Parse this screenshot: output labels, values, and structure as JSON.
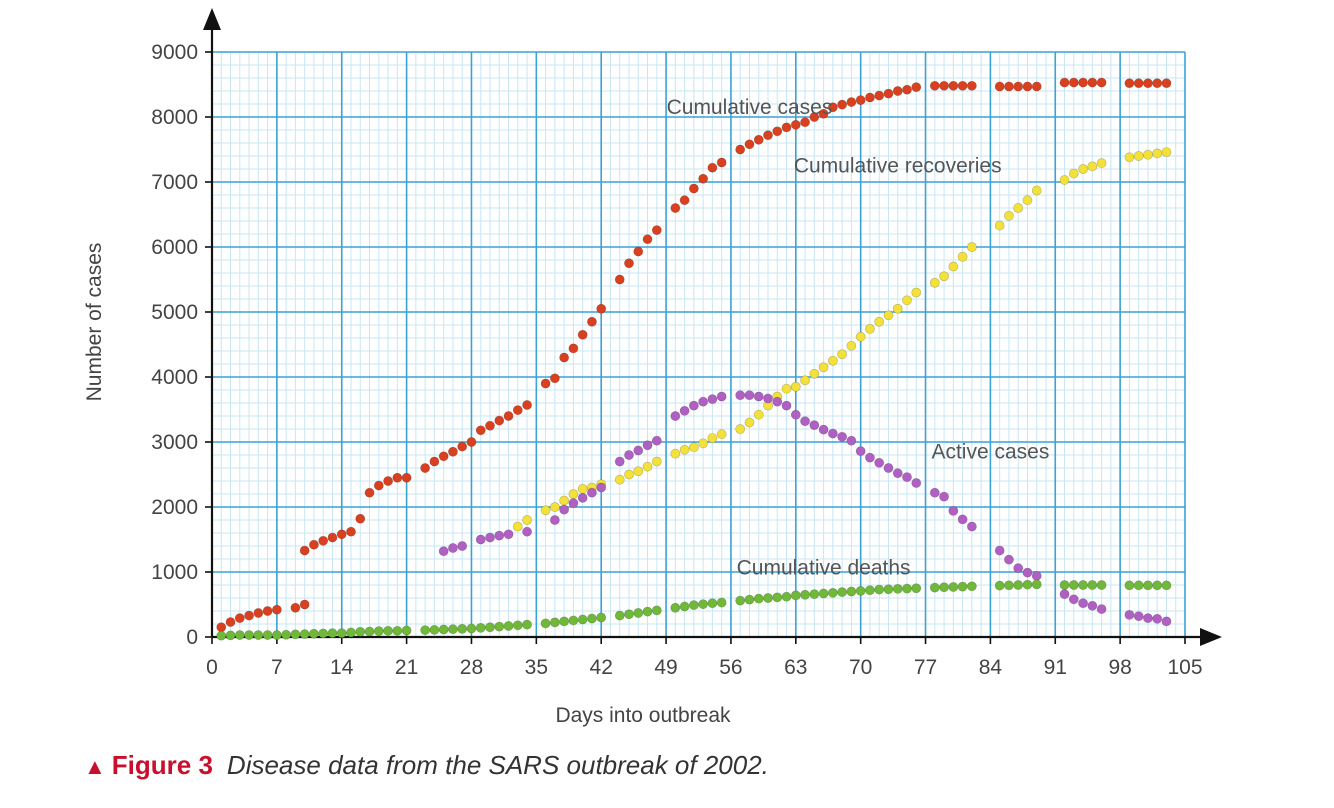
{
  "caption": {
    "figure_label": "Figure 3",
    "description": "Disease data from the SARS outbreak of 2002."
  },
  "colors": {
    "minor_grid": "#c9e6f5",
    "major_grid": "#3aa2d6",
    "axis": "#111111",
    "cases": "#d9401f",
    "recoveries": "#f3e13a",
    "active": "#b05fc2",
    "deaths": "#6fb83a",
    "caption_red": "#c8102e"
  },
  "chart_data": {
    "type": "scatter",
    "title": "",
    "xlabel": "Days into outbreak",
    "ylabel": "Number of cases",
    "xlim": [
      0,
      105
    ],
    "ylim": [
      0,
      9000
    ],
    "x_ticks": [
      0,
      7,
      14,
      21,
      28,
      35,
      42,
      49,
      56,
      63,
      70,
      77,
      84,
      91,
      98,
      105
    ],
    "y_ticks": [
      0,
      1000,
      2000,
      3000,
      4000,
      5000,
      6000,
      7000,
      8000,
      9000
    ],
    "grid": true,
    "series": [
      {
        "name": "Cumulative cases",
        "color": "#d9401f",
        "x": [
          1,
          2,
          3,
          4,
          5,
          6,
          7,
          9,
          10,
          10,
          11,
          12,
          13,
          14,
          15,
          16,
          17,
          18,
          19,
          20,
          21,
          23,
          24,
          25,
          26,
          27,
          28,
          29,
          30,
          31,
          32,
          33,
          34,
          36,
          37,
          38,
          39,
          40,
          41,
          42,
          44,
          45,
          46,
          47,
          48,
          50,
          51,
          52,
          53,
          54,
          55,
          57,
          58,
          59,
          60,
          61,
          62,
          63,
          64,
          65,
          66,
          67,
          68,
          69,
          70,
          71,
          72,
          73,
          74,
          75,
          76,
          78,
          79,
          80,
          81,
          82,
          85,
          86,
          87,
          88,
          89,
          92,
          93,
          94,
          95,
          96,
          99,
          100,
          101,
          102,
          103
        ],
        "y": [
          150,
          230,
          290,
          330,
          370,
          400,
          420,
          450,
          500,
          1330,
          1420,
          1480,
          1530,
          1580,
          1620,
          1820,
          2220,
          2330,
          2400,
          2450,
          2450,
          2600,
          2700,
          2780,
          2850,
          2930,
          3000,
          3180,
          3250,
          3330,
          3400,
          3490,
          3570,
          3900,
          3980,
          4300,
          4440,
          4650,
          4850,
          5050,
          5500,
          5750,
          5930,
          6120,
          6260,
          6600,
          6720,
          6900,
          7050,
          7220,
          7300,
          7500,
          7580,
          7650,
          7720,
          7780,
          7840,
          7880,
          7920,
          8000,
          8050,
          8150,
          8190,
          8230,
          8260,
          8300,
          8330,
          8360,
          8400,
          8420,
          8460,
          8480,
          8480,
          8480,
          8480,
          8480,
          8470,
          8470,
          8470,
          8470,
          8470,
          8530,
          8530,
          8530,
          8530,
          8530,
          8520,
          8520,
          8520,
          8520,
          8520
        ]
      },
      {
        "name": "Cumulative recoveries",
        "color": "#f3e13a",
        "x": [
          33,
          34,
          36,
          37,
          38,
          39,
          40,
          41,
          42,
          44,
          45,
          46,
          47,
          48,
          50,
          51,
          52,
          53,
          54,
          55,
          57,
          58,
          59,
          60,
          61,
          62,
          63,
          64,
          65,
          66,
          67,
          68,
          69,
          70,
          71,
          72,
          73,
          74,
          75,
          76,
          78,
          79,
          80,
          81,
          82,
          85,
          86,
          87,
          88,
          89,
          92,
          93,
          94,
          95,
          96,
          99,
          100,
          101,
          102,
          103
        ],
        "y": [
          1700,
          1800,
          1950,
          2000,
          2100,
          2200,
          2280,
          2300,
          2350,
          2420,
          2500,
          2550,
          2620,
          2700,
          2820,
          2880,
          2920,
          2980,
          3060,
          3120,
          3200,
          3300,
          3420,
          3560,
          3700,
          3820,
          3850,
          3950,
          4050,
          4150,
          4250,
          4350,
          4480,
          4620,
          4740,
          4850,
          4950,
          5050,
          5180,
          5300,
          5450,
          5550,
          5700,
          5850,
          6000,
          6330,
          6480,
          6600,
          6720,
          6870,
          7030,
          7130,
          7200,
          7240,
          7290,
          7380,
          7400,
          7420,
          7440,
          7460
        ]
      },
      {
        "name": "Active cases",
        "color": "#b05fc2",
        "x": [
          25,
          26,
          27,
          29,
          30,
          31,
          32,
          34,
          37,
          38,
          39,
          40,
          41,
          42,
          44,
          45,
          46,
          47,
          48,
          50,
          51,
          52,
          53,
          54,
          55,
          57,
          58,
          59,
          60,
          61,
          62,
          63,
          64,
          65,
          66,
          67,
          68,
          69,
          70,
          71,
          72,
          73,
          74,
          75,
          76,
          78,
          79,
          80,
          81,
          82,
          85,
          86,
          87,
          88,
          89,
          92,
          93,
          94,
          95,
          96,
          99,
          100,
          101,
          102,
          103
        ],
        "y": [
          1320,
          1370,
          1400,
          1500,
          1530,
          1560,
          1580,
          1620,
          1800,
          1960,
          2060,
          2140,
          2220,
          2300,
          2700,
          2800,
          2870,
          2950,
          3020,
          3400,
          3480,
          3560,
          3620,
          3660,
          3700,
          3720,
          3720,
          3700,
          3670,
          3620,
          3560,
          3420,
          3320,
          3260,
          3190,
          3130,
          3080,
          3020,
          2860,
          2760,
          2680,
          2600,
          2520,
          2460,
          2370,
          2220,
          2160,
          1940,
          1810,
          1700,
          1330,
          1190,
          1060,
          990,
          940,
          660,
          580,
          520,
          480,
          430,
          340,
          320,
          290,
          280,
          240
        ]
      },
      {
        "name": "Cumulative deaths",
        "color": "#6fb83a",
        "x": [
          1,
          2,
          3,
          4,
          5,
          6,
          7,
          8,
          9,
          10,
          11,
          12,
          13,
          14,
          15,
          16,
          17,
          18,
          19,
          20,
          21,
          23,
          24,
          25,
          26,
          27,
          28,
          29,
          30,
          31,
          32,
          33,
          34,
          36,
          37,
          38,
          39,
          40,
          41,
          42,
          44,
          45,
          46,
          47,
          48,
          50,
          51,
          52,
          53,
          54,
          55,
          57,
          58,
          59,
          60,
          61,
          62,
          63,
          64,
          65,
          66,
          67,
          68,
          69,
          70,
          71,
          72,
          73,
          74,
          75,
          76,
          78,
          79,
          80,
          81,
          82,
          85,
          86,
          87,
          88,
          89,
          92,
          93,
          94,
          95,
          96,
          99,
          100,
          101,
          102,
          103
        ],
        "y": [
          20,
          25,
          30,
          30,
          30,
          30,
          30,
          35,
          40,
          45,
          50,
          55,
          60,
          60,
          70,
          80,
          85,
          90,
          95,
          95,
          100,
          105,
          110,
          115,
          120,
          125,
          130,
          140,
          150,
          160,
          170,
          180,
          190,
          210,
          225,
          240,
          255,
          270,
          285,
          300,
          330,
          350,
          370,
          390,
          410,
          450,
          470,
          490,
          505,
          520,
          530,
          560,
          575,
          590,
          600,
          610,
          620,
          640,
          650,
          660,
          670,
          680,
          690,
          700,
          710,
          720,
          730,
          735,
          740,
          745,
          750,
          760,
          765,
          770,
          775,
          780,
          790,
          795,
          800,
          805,
          810,
          800,
          800,
          800,
          800,
          800,
          795,
          795,
          795,
          795,
          795
        ]
      }
    ],
    "annotations": [
      {
        "text": "Cumulative cases",
        "x": 58,
        "y": 8050,
        "anchor": "middle"
      },
      {
        "text": "Cumulative recoveries",
        "x": 74,
        "y": 7150,
        "anchor": "middle"
      },
      {
        "text": "Active cases",
        "x": 84,
        "y": 2750,
        "anchor": "middle"
      },
      {
        "text": "Cumulative deaths",
        "x": 66,
        "y": 960,
        "anchor": "middle"
      }
    ]
  }
}
